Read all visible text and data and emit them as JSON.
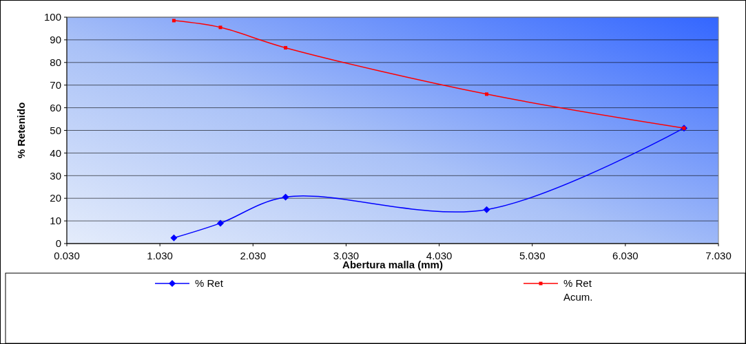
{
  "chart_data": {
    "type": "line",
    "xlabel": "Abertura malla (mm)",
    "ylabel": "% Retenido",
    "xlim": [
      0.03,
      7.03
    ],
    "xticks": [
      {
        "value": 0.03,
        "label": "0.030"
      },
      {
        "value": 1.03,
        "label": "1.030"
      },
      {
        "value": 2.03,
        "label": "2.030"
      },
      {
        "value": 3.03,
        "label": "3.030"
      },
      {
        "value": 4.03,
        "label": "4.030"
      },
      {
        "value": 5.03,
        "label": "5.030"
      },
      {
        "value": 6.03,
        "label": "6.030"
      },
      {
        "value": 7.03,
        "label": "7.030"
      }
    ],
    "ylim": [
      0,
      100
    ],
    "yticks": [
      0,
      10,
      20,
      30,
      40,
      50,
      60,
      70,
      80,
      90,
      100
    ],
    "grid": "y",
    "legend": "bottom",
    "series": [
      {
        "name": "% Ret",
        "color": "#0000ff",
        "marker": "diamond",
        "x": [
          1.18,
          1.68,
          2.38,
          4.54,
          6.66
        ],
        "values": [
          2.5,
          9,
          20.5,
          15,
          51
        ]
      },
      {
        "name": "% Ret Acum.",
        "color": "#ff0000",
        "marker": "square",
        "x": [
          1.18,
          1.68,
          2.38,
          4.54,
          6.66
        ],
        "values": [
          98.5,
          95.5,
          86.5,
          66,
          51
        ]
      }
    ]
  }
}
